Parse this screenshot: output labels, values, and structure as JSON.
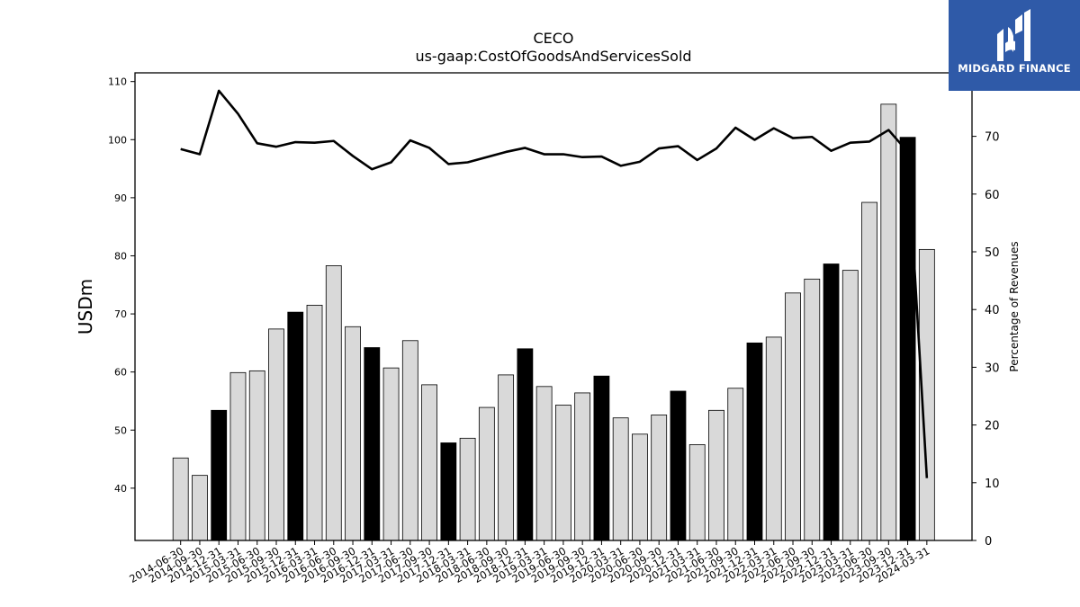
{
  "brand": {
    "name": "MIDGARD FINANCE",
    "background": "#2f5aa8"
  },
  "chart_data": {
    "type": "bar",
    "title": "CECO",
    "subtitle": "us-gaap:CostOfGoodsAndServicesSold",
    "ylabel": "USDm",
    "y2label": "Percentage of Revenues",
    "ylim": [
      31,
      111.5
    ],
    "y2lim": [
      0,
      81
    ],
    "yticks": [
      40,
      50,
      60,
      70,
      80,
      90,
      100,
      110
    ],
    "y2ticks": [
      0,
      10,
      20,
      30,
      40,
      50,
      60,
      70
    ],
    "bar_colors": {
      "default": "#d9d9d9",
      "highlight": "#000000"
    },
    "categories": [
      "2014-06-30",
      "2014-09-30",
      "2014-12-31",
      "2015-03-31",
      "2015-06-30",
      "2015-09-30",
      "2015-12-31",
      "2016-03-31",
      "2016-06-30",
      "2016-09-30",
      "2016-12-31",
      "2017-03-31",
      "2017-06-30",
      "2017-09-30",
      "2017-12-31",
      "2018-03-31",
      "2018-06-30",
      "2018-09-30",
      "2018-12-31",
      "2019-03-31",
      "2019-06-30",
      "2019-09-30",
      "2019-12-31",
      "2020-03-31",
      "2020-06-30",
      "2020-09-30",
      "2020-12-31",
      "2021-03-31",
      "2021-06-30",
      "2021-09-30",
      "2021-12-31",
      "2022-03-31",
      "2022-06-30",
      "2022-09-30",
      "2022-12-31",
      "2023-03-31",
      "2023-06-30",
      "2023-09-30",
      "2023-12-31",
      "2024-03-31"
    ],
    "series": [
      {
        "type": "bar",
        "axis": "left",
        "values": [
          45.2,
          42.2,
          53.4,
          59.9,
          60.2,
          67.4,
          70.3,
          71.5,
          78.3,
          67.8,
          64.2,
          60.7,
          65.4,
          57.8,
          47.8,
          48.6,
          53.9,
          59.5,
          64.0,
          57.5,
          54.3,
          56.4,
          59.3,
          52.1,
          49.3,
          52.6,
          56.7,
          47.5,
          53.4,
          57.2,
          65.0,
          66.0,
          73.6,
          76.0,
          78.6,
          77.5,
          89.2,
          106.1,
          100.4,
          81.1
        ],
        "highlight": [
          false,
          false,
          true,
          false,
          false,
          false,
          true,
          false,
          false,
          false,
          true,
          false,
          false,
          false,
          true,
          false,
          false,
          false,
          true,
          false,
          false,
          false,
          true,
          false,
          false,
          false,
          true,
          false,
          false,
          false,
          true,
          false,
          false,
          false,
          true,
          false,
          false,
          false,
          true,
          false
        ]
      },
      {
        "type": "line",
        "axis": "right",
        "values": [
          67.8,
          66.9,
          77.9,
          73.9,
          68.8,
          68.2,
          69.0,
          68.9,
          69.2,
          66.6,
          64.3,
          65.5,
          69.3,
          68.0,
          65.2,
          65.5,
          66.4,
          67.3,
          68.0,
          66.9,
          66.9,
          66.4,
          66.5,
          64.9,
          65.6,
          67.9,
          68.3,
          65.9,
          67.9,
          71.5,
          69.4,
          71.4,
          69.7,
          69.9,
          67.5,
          68.9,
          69.1,
          71.1,
          67.3,
          10.8
        ]
      }
    ]
  }
}
